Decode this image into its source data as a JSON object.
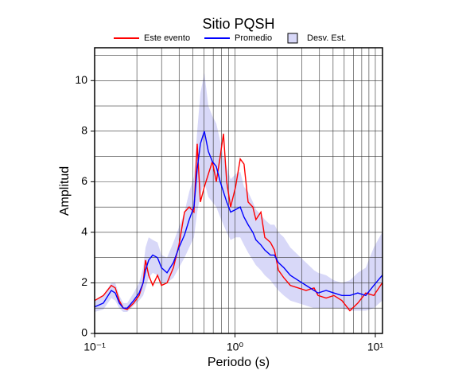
{
  "chart_data": {
    "type": "line",
    "title": "Sitio PQSH",
    "xlabel": "Periodo (s)",
    "ylabel": "Amplitud",
    "xscale": "log",
    "grid": true,
    "xlim": [
      0.1,
      11.25
    ],
    "ylim": [
      0,
      11.3
    ],
    "xticks": [
      {
        "value": 0.1,
        "label": "10⁻¹"
      },
      {
        "value": 1,
        "label": "10⁰"
      },
      {
        "value": 10,
        "label": "10¹"
      }
    ],
    "x_minor_ticks": [
      0.2,
      0.3,
      0.4,
      0.5,
      0.6,
      0.7,
      0.8,
      0.9,
      2,
      3,
      4,
      5,
      6,
      7,
      8,
      9
    ],
    "yticks": [
      0,
      2,
      4,
      6,
      8,
      10
    ],
    "y_minor_ticks": [
      1,
      3,
      5,
      7,
      9,
      11
    ],
    "x": [
      0.1,
      0.1154,
      0.1315,
      0.1403,
      0.1499,
      0.16,
      0.1706,
      0.1896,
      0.2076,
      0.2216,
      0.2305,
      0.2428,
      0.2594,
      0.2805,
      0.2993,
      0.328,
      0.364,
      0.399,
      0.437,
      0.472,
      0.51,
      0.538,
      0.567,
      0.605,
      0.646,
      0.69,
      0.736,
      0.785,
      0.828,
      0.873,
      0.931,
      1.01,
      1.09,
      1.16,
      1.24,
      1.34,
      1.41,
      1.53,
      1.63,
      1.79,
      1.91,
      2.04,
      2.23,
      2.48,
      2.82,
      3.21,
      3.66,
      3.91,
      4.46,
      5.07,
      5.78,
      6.59,
      7.5,
      8.55,
      9.75,
      11.2
    ],
    "series": [
      {
        "name": "Este evento",
        "color": "#ff0000",
        "values": [
          1.3,
          1.5,
          1.9,
          1.8,
          1.3,
          1.0,
          0.95,
          1.2,
          1.5,
          2.0,
          2.9,
          2.3,
          1.9,
          2.3,
          1.9,
          2.0,
          2.6,
          3.5,
          4.8,
          5.0,
          4.8,
          7.5,
          5.2,
          5.8,
          6.3,
          6.8,
          6.0,
          7.0,
          7.9,
          6.0,
          5.0,
          5.8,
          6.9,
          6.7,
          5.2,
          5.0,
          4.5,
          4.8,
          3.8,
          3.6,
          3.3,
          2.5,
          2.2,
          1.9,
          1.8,
          1.7,
          1.8,
          1.5,
          1.4,
          1.5,
          1.3,
          0.9,
          1.2,
          1.6,
          1.5,
          2.0
        ]
      },
      {
        "name": "Promedio",
        "color": "#0000ff",
        "values": [
          1.05,
          1.2,
          1.7,
          1.6,
          1.2,
          1.0,
          1.0,
          1.3,
          1.6,
          2.0,
          2.5,
          2.9,
          3.1,
          3.0,
          2.6,
          2.4,
          2.8,
          3.4,
          3.9,
          4.5,
          5.0,
          6.5,
          7.5,
          8.0,
          7.2,
          6.8,
          6.6,
          6.0,
          5.6,
          5.2,
          4.8,
          4.9,
          5.0,
          4.6,
          4.3,
          4.0,
          3.7,
          3.5,
          3.3,
          3.1,
          3.1,
          2.8,
          2.6,
          2.3,
          2.1,
          1.9,
          1.7,
          1.6,
          1.7,
          1.6,
          1.5,
          1.5,
          1.6,
          1.5,
          1.9,
          2.3
        ]
      }
    ],
    "band": {
      "name": "Desv. Est.",
      "color": "#d8d8f8",
      "lower": [
        0.85,
        0.95,
        1.4,
        1.3,
        1.0,
        0.85,
        0.85,
        1.1,
        1.3,
        1.5,
        1.8,
        2.2,
        2.4,
        2.3,
        2.0,
        2.0,
        2.2,
        2.6,
        3.0,
        3.4,
        3.8,
        4.8,
        5.5,
        6.0,
        5.4,
        5.2,
        5.0,
        4.6,
        4.3,
        4.0,
        3.7,
        3.8,
        3.8,
        3.5,
        3.2,
        2.9,
        2.7,
        2.5,
        2.3,
        2.1,
        1.9,
        1.7,
        1.5,
        1.3,
        1.2,
        1.1,
        1.0,
        1.0,
        1.0,
        1.0,
        1.0,
        0.9,
        0.9,
        0.9,
        1.0,
        1.3
      ],
      "upper": [
        1.3,
        1.5,
        2.0,
        2.0,
        1.5,
        1.2,
        1.2,
        1.6,
        2.0,
        2.6,
        3.4,
        3.8,
        3.7,
        3.6,
        3.1,
        3.0,
        3.6,
        4.2,
        4.8,
        5.6,
        6.2,
        8.0,
        9.5,
        10.3,
        9.0,
        8.6,
        8.3,
        7.6,
        7.0,
        6.6,
        6.1,
        6.3,
        6.4,
        5.8,
        5.6,
        5.2,
        4.9,
        4.7,
        4.5,
        4.3,
        4.3,
        4.0,
        3.8,
        3.4,
        3.1,
        2.8,
        2.5,
        2.4,
        2.3,
        2.1,
        2.0,
        2.1,
        2.4,
        2.6,
        3.4,
        4.0
      ]
    }
  }
}
